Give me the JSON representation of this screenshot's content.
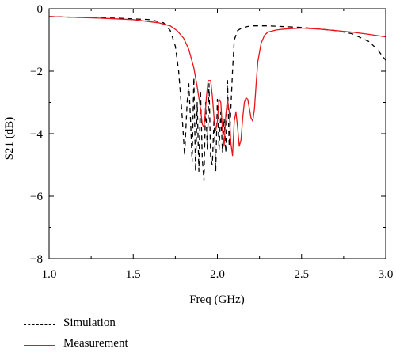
{
  "chart_data": {
    "type": "line",
    "xlabel": "Freq (GHz)",
    "ylabel": "S21 (dB)",
    "xlim": [
      1.0,
      3.0
    ],
    "ylim": [
      -8,
      0
    ],
    "xticks": [
      "1.0",
      "1.5",
      "2.0",
      "2.5",
      "3.0"
    ],
    "yticks": [
      "0",
      "−2",
      "−4",
      "−6",
      "−8"
    ],
    "grid": false,
    "legend_position": "bottom-left",
    "series": [
      {
        "name": "Simulation",
        "color": "#000000",
        "style": "dashed",
        "x": [
          1.0,
          1.2,
          1.4,
          1.6,
          1.68,
          1.72,
          1.75,
          1.77,
          1.79,
          1.805,
          1.82,
          1.83,
          1.84,
          1.85,
          1.86,
          1.87,
          1.88,
          1.89,
          1.9,
          1.91,
          1.92,
          1.93,
          1.94,
          1.95,
          1.96,
          1.97,
          1.98,
          1.99,
          2.0,
          2.01,
          2.02,
          2.03,
          2.04,
          2.05,
          2.06,
          2.07,
          2.08,
          2.09,
          2.1,
          2.12,
          2.15,
          2.2,
          2.3,
          2.5,
          2.7,
          2.8,
          2.9,
          2.95,
          3.0
        ],
        "y": [
          -0.25,
          -0.28,
          -0.3,
          -0.35,
          -0.45,
          -0.7,
          -1.2,
          -2.0,
          -3.4,
          -4.7,
          -3.0,
          -2.4,
          -3.5,
          -4.9,
          -2.2,
          -5.2,
          -3.0,
          -5.2,
          -2.6,
          -4.8,
          -5.5,
          -3.0,
          -4.5,
          -2.4,
          -4.8,
          -5.0,
          -3.5,
          -5.2,
          -2.9,
          -4.5,
          -3.3,
          -4.6,
          -3.5,
          -4.6,
          -2.3,
          -4.4,
          -3.2,
          -2.0,
          -1.0,
          -0.7,
          -0.6,
          -0.55,
          -0.55,
          -0.6,
          -0.7,
          -0.8,
          -1.05,
          -1.3,
          -1.65
        ]
      },
      {
        "name": "Measurement",
        "color": "#e8151b",
        "style": "solid",
        "x": [
          1.0,
          1.3,
          1.5,
          1.65,
          1.72,
          1.76,
          1.8,
          1.83,
          1.86,
          1.88,
          1.9,
          1.91,
          1.92,
          1.93,
          1.935,
          1.945,
          1.96,
          1.97,
          1.98,
          1.99,
          2.0,
          2.01,
          2.02,
          2.03,
          2.04,
          2.05,
          2.06,
          2.07,
          2.08,
          2.09,
          2.1,
          2.11,
          2.12,
          2.13,
          2.14,
          2.15,
          2.16,
          2.17,
          2.18,
          2.19,
          2.2,
          2.21,
          2.22,
          2.23,
          2.24,
          2.26,
          2.28,
          2.3,
          2.35,
          2.4,
          2.5,
          2.6,
          2.7,
          2.8,
          2.9,
          3.0
        ],
        "y": [
          -0.25,
          -0.3,
          -0.35,
          -0.45,
          -0.55,
          -0.7,
          -0.95,
          -1.3,
          -1.9,
          -2.5,
          -3.2,
          -3.7,
          -3.8,
          -3.2,
          -2.8,
          -2.3,
          -2.3,
          -2.8,
          -3.5,
          -3.9,
          -3.6,
          -2.9,
          -3.0,
          -3.9,
          -4.4,
          -3.4,
          -2.9,
          -3.3,
          -4.3,
          -4.7,
          -3.6,
          -3.3,
          -3.8,
          -4.4,
          -4.2,
          -3.5,
          -3.0,
          -2.85,
          -2.9,
          -3.2,
          -3.5,
          -3.6,
          -3.2,
          -2.4,
          -1.7,
          -1.1,
          -0.85,
          -0.75,
          -0.68,
          -0.65,
          -0.62,
          -0.65,
          -0.7,
          -0.75,
          -0.82,
          -0.9
        ]
      }
    ]
  }
}
